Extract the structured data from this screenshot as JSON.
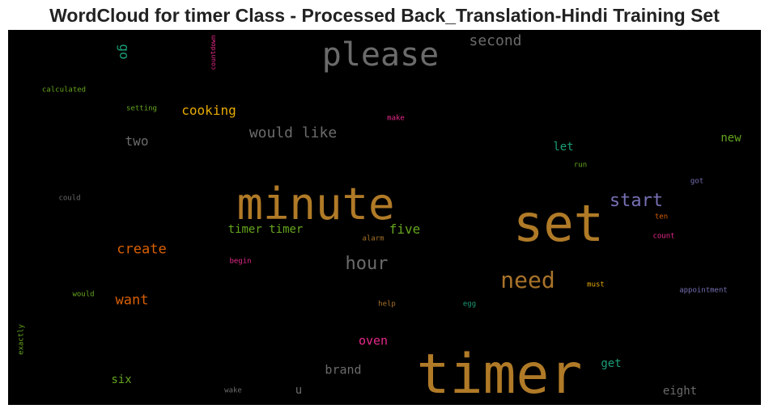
{
  "chart_data": {
    "type": "wordcloud",
    "title": "WordCloud for timer Class - Processed Back_Translation-Hindi Training Set",
    "background": "#000000",
    "words": [
      {
        "text": "timer",
        "weight": 1.0,
        "color": "#b07a27"
      },
      {
        "text": "set",
        "weight": 0.95,
        "color": "#b07a27"
      },
      {
        "text": "minute",
        "weight": 0.82,
        "color": "#b07a27"
      },
      {
        "text": "please",
        "weight": 0.6,
        "color": "#6b6b6b"
      },
      {
        "text": "need",
        "weight": 0.45,
        "color": "#a8732a"
      },
      {
        "text": "hour",
        "weight": 0.38,
        "color": "#6b6b6b"
      },
      {
        "text": "start",
        "weight": 0.38,
        "color": "#7570b3"
      },
      {
        "text": "would like",
        "weight": 0.3,
        "color": "#6b6b6b"
      },
      {
        "text": "second",
        "weight": 0.3,
        "color": "#6b6b6b"
      },
      {
        "text": "create",
        "weight": 0.3,
        "color": "#d95f02"
      },
      {
        "text": "want",
        "weight": 0.3,
        "color": "#d95f02"
      },
      {
        "text": "cooking",
        "weight": 0.28,
        "color": "#e6ab02"
      },
      {
        "text": "two",
        "weight": 0.28,
        "color": "#6b6b6b"
      },
      {
        "text": "go",
        "weight": 0.28,
        "color": "#1b9e77"
      },
      {
        "text": "five",
        "weight": 0.28,
        "color": "#66a61e"
      },
      {
        "text": "oven",
        "weight": 0.25,
        "color": "#e7298a"
      },
      {
        "text": "brand",
        "weight": 0.25,
        "color": "#6b6b6b"
      },
      {
        "text": "timer timer",
        "weight": 0.24,
        "color": "#66a61e"
      },
      {
        "text": "six",
        "weight": 0.24,
        "color": "#66a61e"
      },
      {
        "text": "get",
        "weight": 0.24,
        "color": "#1b9e77"
      },
      {
        "text": "eight",
        "weight": 0.24,
        "color": "#6b6b6b"
      },
      {
        "text": "new",
        "weight": 0.24,
        "color": "#66a61e"
      },
      {
        "text": "let",
        "weight": 0.24,
        "color": "#1b9e77"
      },
      {
        "text": "u",
        "weight": 0.24,
        "color": "#6b6b6b"
      },
      {
        "text": "calculated",
        "weight": 0.12,
        "color": "#66a61e"
      },
      {
        "text": "setting",
        "weight": 0.12,
        "color": "#66a61e"
      },
      {
        "text": "countdown",
        "weight": 0.12,
        "color": "#e7298a"
      },
      {
        "text": "make",
        "weight": 0.12,
        "color": "#e7298a"
      },
      {
        "text": "run",
        "weight": 0.12,
        "color": "#66a61e"
      },
      {
        "text": "could",
        "weight": 0.12,
        "color": "#6b6b6b"
      },
      {
        "text": "got",
        "weight": 0.12,
        "color": "#7570b3"
      },
      {
        "text": "ten",
        "weight": 0.12,
        "color": "#d95f02"
      },
      {
        "text": "count",
        "weight": 0.12,
        "color": "#e7298a"
      },
      {
        "text": "alarm",
        "weight": 0.12,
        "color": "#a8732a"
      },
      {
        "text": "begin",
        "weight": 0.12,
        "color": "#e7298a"
      },
      {
        "text": "would",
        "weight": 0.12,
        "color": "#66a61e"
      },
      {
        "text": "must",
        "weight": 0.12,
        "color": "#e6ab02"
      },
      {
        "text": "appointment",
        "weight": 0.12,
        "color": "#7570b3"
      },
      {
        "text": "help",
        "weight": 0.12,
        "color": "#a8732a"
      },
      {
        "text": "egg",
        "weight": 0.12,
        "color": "#1b9e77"
      },
      {
        "text": "exactly",
        "weight": 0.12,
        "color": "#66a61e"
      },
      {
        "text": "wake",
        "weight": 0.12,
        "color": "#6b6b6b"
      }
    ]
  }
}
